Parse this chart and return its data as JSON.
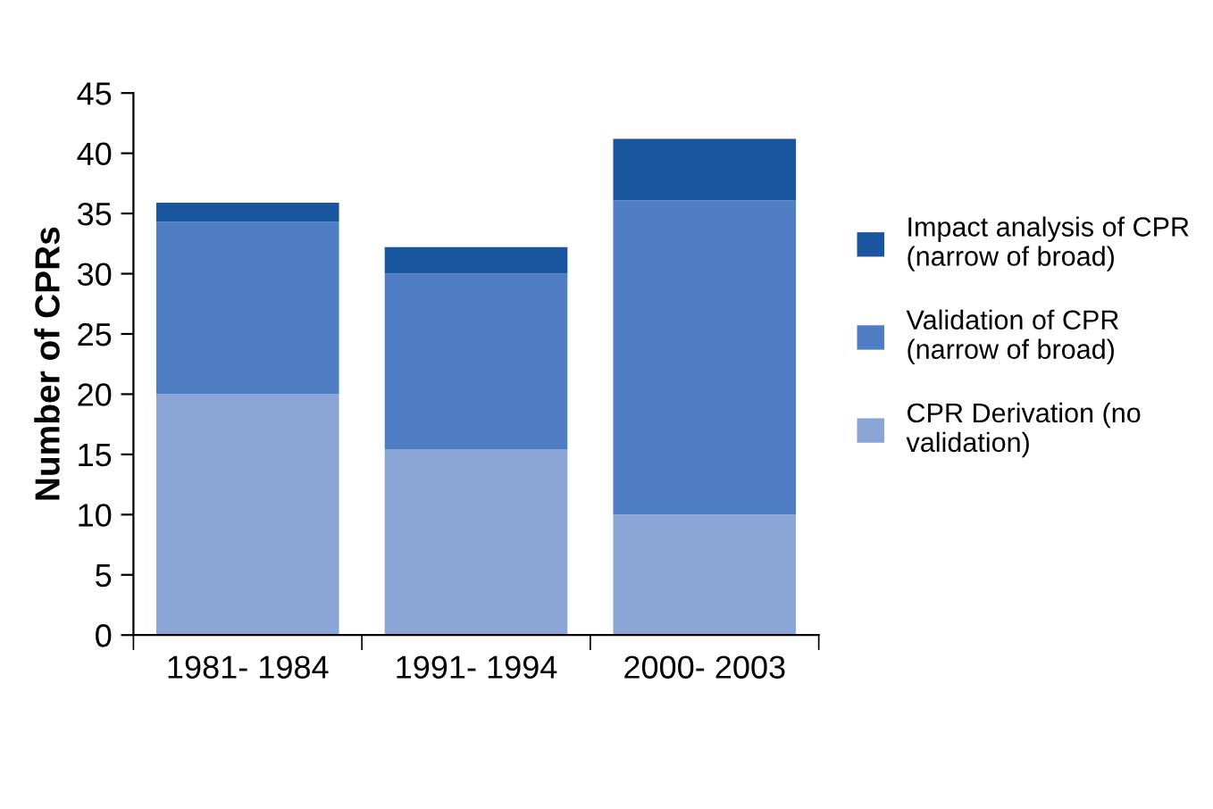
{
  "chart_data": {
    "type": "bar",
    "stacked": true,
    "ylabel": "Number of CPRs",
    "categories": [
      "1981- 1984",
      "1991- 1994",
      "2000- 2003"
    ],
    "series": [
      {
        "name": "CPR Derivation (no validation)",
        "color": "#8ba6d6",
        "values": [
          20,
          15.4,
          10
        ]
      },
      {
        "name": "Validation of CPR (narrow of broad)",
        "color": "#507ec4",
        "values": [
          14.3,
          14.6,
          26.1
        ]
      },
      {
        "name": "Impact analysis of CPR (narrow of broad)",
        "color": "#1a56a0",
        "values": [
          1.6,
          2.2,
          5.1
        ]
      }
    ],
    "ylim": [
      0,
      45
    ],
    "yticks": [
      0,
      5,
      10,
      15,
      20,
      25,
      30,
      35,
      40,
      45
    ],
    "grid": false,
    "legend": "right"
  }
}
